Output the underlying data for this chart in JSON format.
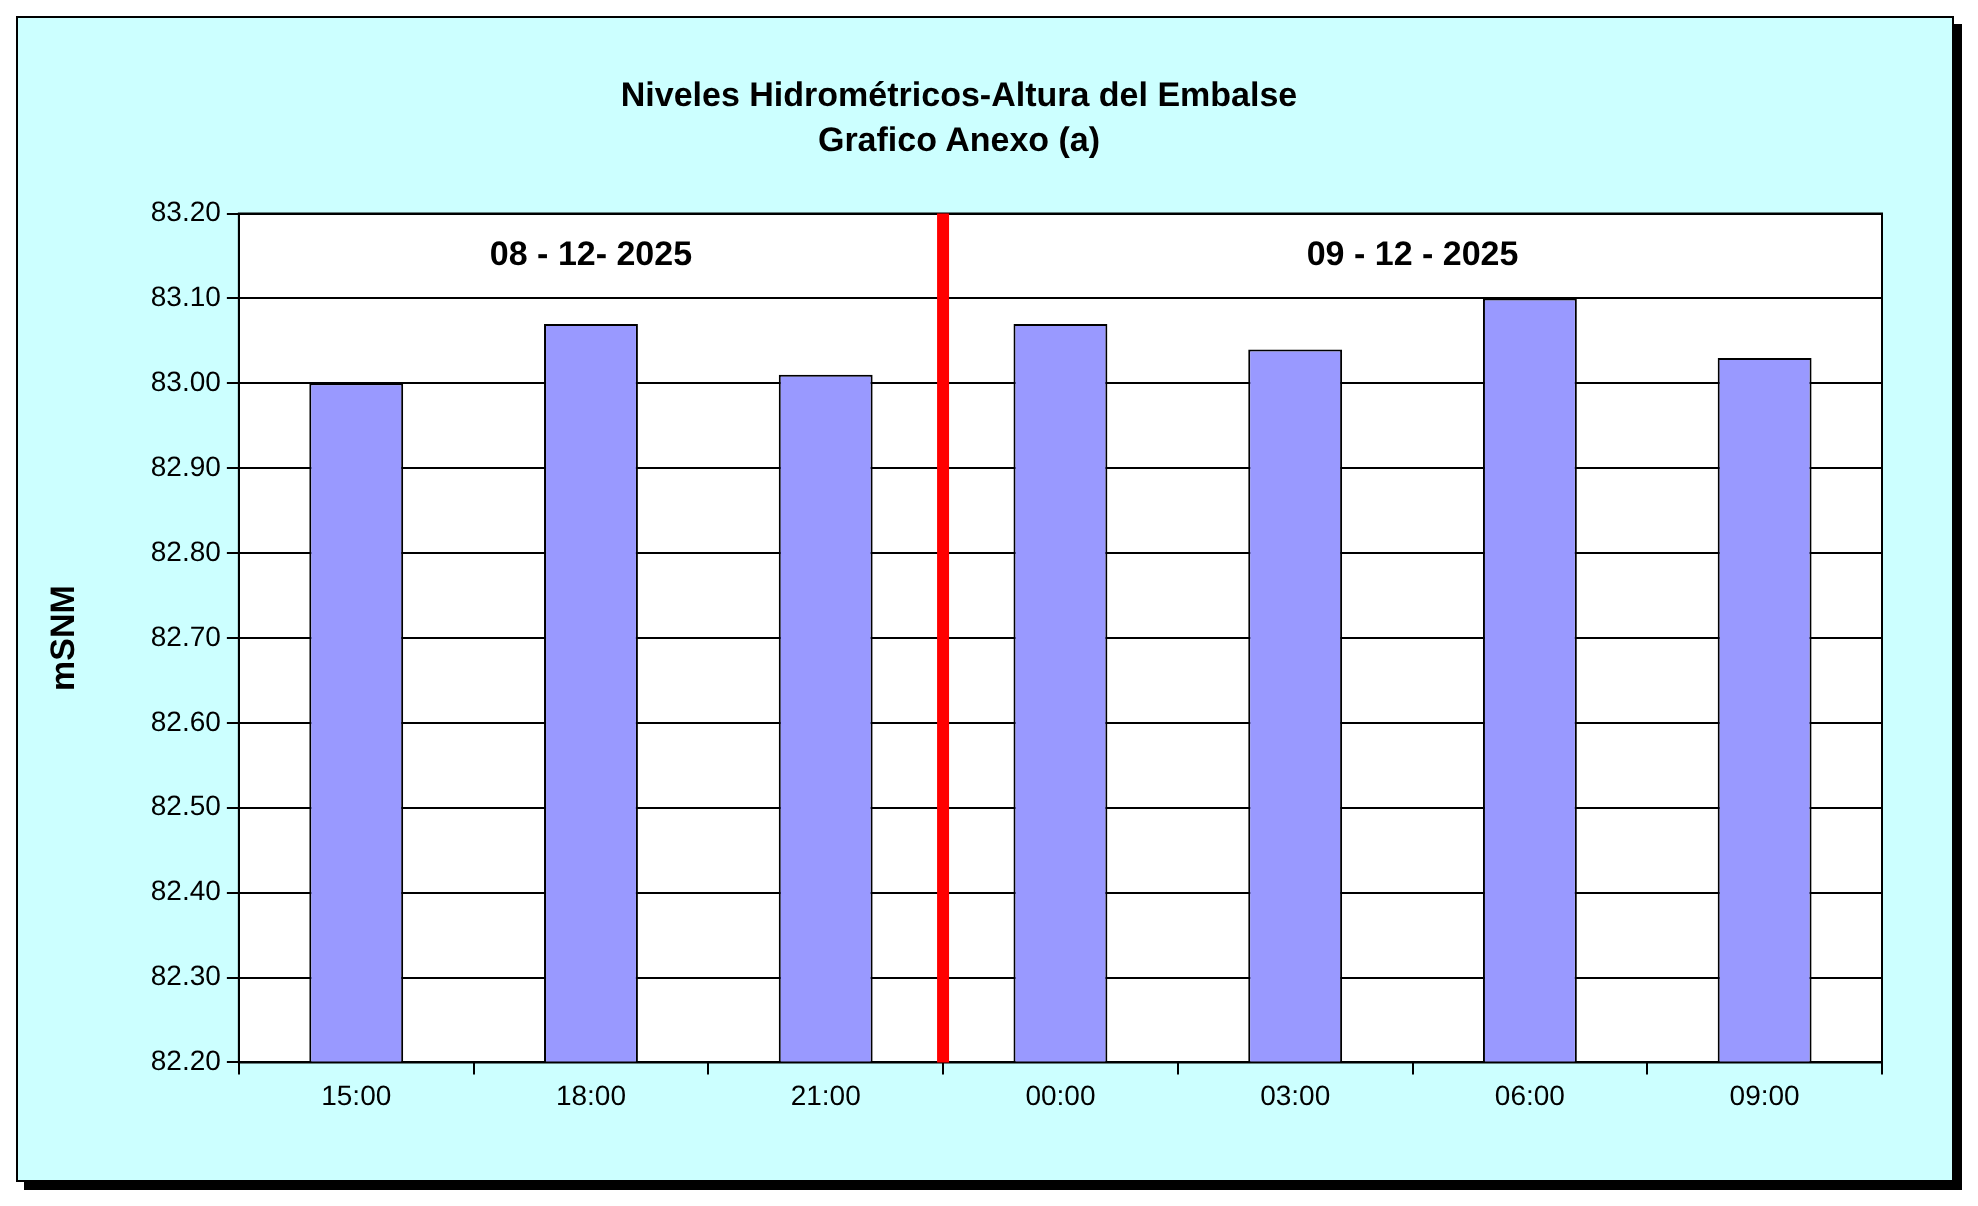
{
  "chart_data": {
    "type": "bar",
    "title": "Niveles Hidrométricos-Altura del Embalse",
    "subtitle": "Grafico Anexo (a)",
    "ylabel": "mSNM",
    "categories": [
      "15:00",
      "18:00",
      "21:00",
      "00:00",
      "03:00",
      "06:00",
      "09:00"
    ],
    "values": [
      83.0,
      83.07,
      83.01,
      83.07,
      83.04,
      83.1,
      83.03
    ],
    "color": "#9999ff",
    "ylim": [
      82.2,
      83.2
    ],
    "yticks": [
      {
        "value": 82.2,
        "label": "82.20"
      },
      {
        "value": 82.3,
        "label": "82.30"
      },
      {
        "value": 82.4,
        "label": "82.40"
      },
      {
        "value": 82.5,
        "label": "82.50"
      },
      {
        "value": 82.6,
        "label": "82.60"
      },
      {
        "value": 82.7,
        "label": "82.70"
      },
      {
        "value": 82.8,
        "label": "82.80"
      },
      {
        "value": 82.9,
        "label": "82.90"
      },
      {
        "value": 83.0,
        "label": "83.00"
      },
      {
        "value": 83.1,
        "label": "83.10"
      },
      {
        "value": 83.2,
        "label": "83.20"
      }
    ],
    "grid": "y",
    "legend": false,
    "ref_lines": [
      {
        "axis": "x",
        "value": "00:00",
        "color": "#ff0000"
      }
    ],
    "annotations": [
      "08 - 12- 2025",
      "09 - 12 - 2025"
    ]
  }
}
